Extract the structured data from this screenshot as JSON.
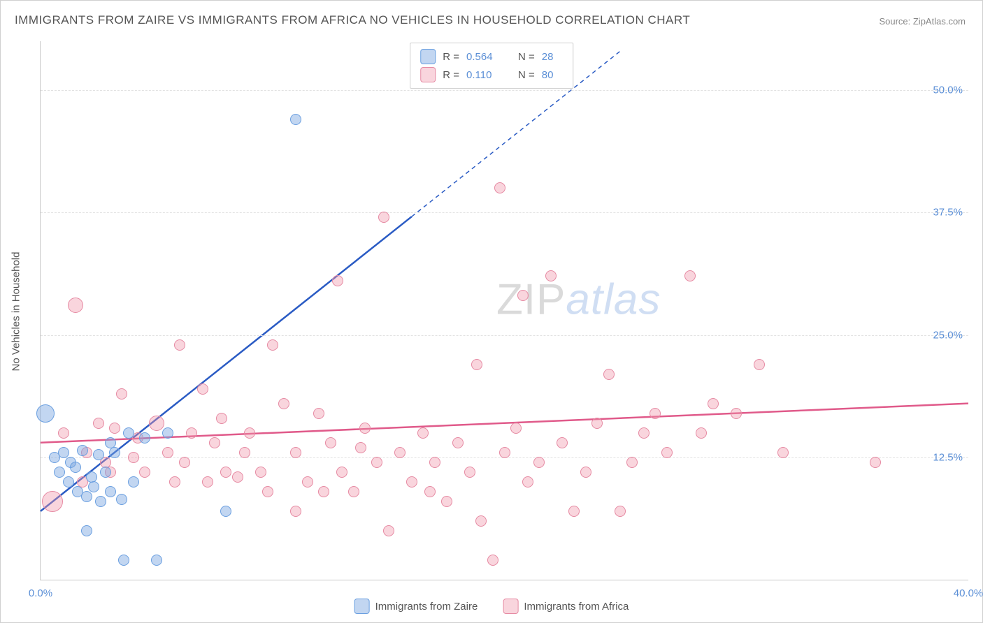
{
  "title": "IMMIGRANTS FROM ZAIRE VS IMMIGRANTS FROM AFRICA NO VEHICLES IN HOUSEHOLD CORRELATION CHART",
  "source": "Source: ZipAtlas.com",
  "ylabel": "No Vehicles in Household",
  "watermark": {
    "part1": "ZIP",
    "part2": "atlas"
  },
  "chart": {
    "type": "scatter",
    "background_color": "#ffffff",
    "grid_color": "#e2e2e2",
    "axis_color": "#c8c8c8",
    "tick_label_color": "#5b8fd6",
    "xlim": [
      0,
      40
    ],
    "ylim": [
      0,
      55
    ],
    "xticks": [
      {
        "v": 0,
        "label": "0.0%"
      },
      {
        "v": 40,
        "label": "40.0%"
      }
    ],
    "yticks": [
      {
        "v": 12.5,
        "label": "12.5%"
      },
      {
        "v": 25,
        "label": "25.0%"
      },
      {
        "v": 37.5,
        "label": "37.5%"
      },
      {
        "v": 50,
        "label": "50.0%"
      }
    ],
    "series": [
      {
        "name": "Immigrants from Zaire",
        "fill": "rgba(120,165,225,0.45)",
        "stroke": "#6a9fe0",
        "r_value": "0.564",
        "n_value": "28",
        "regression": {
          "color": "#2a5bc4",
          "width": 2.5,
          "solid_to_x": 16,
          "x1": 0,
          "y1": 7,
          "x2": 25,
          "y2": 54
        },
        "points": [
          {
            "x": 0.2,
            "y": 17,
            "r": 13
          },
          {
            "x": 0.6,
            "y": 12.5,
            "r": 8
          },
          {
            "x": 0.8,
            "y": 11,
            "r": 8
          },
          {
            "x": 1.0,
            "y": 13,
            "r": 8
          },
          {
            "x": 1.2,
            "y": 10,
            "r": 8
          },
          {
            "x": 1.3,
            "y": 12,
            "r": 8
          },
          {
            "x": 1.5,
            "y": 11.5,
            "r": 8
          },
          {
            "x": 1.6,
            "y": 9,
            "r": 8
          },
          {
            "x": 1.8,
            "y": 13.2,
            "r": 8
          },
          {
            "x": 2.0,
            "y": 8.5,
            "r": 8
          },
          {
            "x": 2.2,
            "y": 10.5,
            "r": 8
          },
          {
            "x": 2.3,
            "y": 9.5,
            "r": 8
          },
          {
            "x": 2.5,
            "y": 12.8,
            "r": 8
          },
          {
            "x": 2.6,
            "y": 8,
            "r": 8
          },
          {
            "x": 2.8,
            "y": 11,
            "r": 8
          },
          {
            "x": 3.0,
            "y": 9,
            "r": 8
          },
          {
            "x": 3.2,
            "y": 13,
            "r": 8
          },
          {
            "x": 3.5,
            "y": 8.2,
            "r": 8
          },
          {
            "x": 3.8,
            "y": 15,
            "r": 8
          },
          {
            "x": 4.0,
            "y": 10,
            "r": 8
          },
          {
            "x": 2.0,
            "y": 5,
            "r": 8
          },
          {
            "x": 3.6,
            "y": 2,
            "r": 8
          },
          {
            "x": 5.0,
            "y": 2,
            "r": 8
          },
          {
            "x": 4.5,
            "y": 14.5,
            "r": 8
          },
          {
            "x": 5.5,
            "y": 15,
            "r": 8
          },
          {
            "x": 8.0,
            "y": 7,
            "r": 8
          },
          {
            "x": 11.0,
            "y": 47,
            "r": 8
          },
          {
            "x": 3.0,
            "y": 14,
            "r": 8
          }
        ]
      },
      {
        "name": "Immigrants from Africa",
        "fill": "rgba(240,150,170,0.40)",
        "stroke": "#e68aa3",
        "r_value": "0.110",
        "n_value": "80",
        "regression": {
          "color": "#e05a8a",
          "width": 2.5,
          "solid_to_x": 40,
          "x1": 0,
          "y1": 14,
          "x2": 40,
          "y2": 18
        },
        "points": [
          {
            "x": 0.5,
            "y": 8,
            "r": 15
          },
          {
            "x": 1.5,
            "y": 28,
            "r": 11
          },
          {
            "x": 1.0,
            "y": 15,
            "r": 8
          },
          {
            "x": 2.0,
            "y": 13,
            "r": 8
          },
          {
            "x": 2.5,
            "y": 16,
            "r": 8
          },
          {
            "x": 3.0,
            "y": 11,
            "r": 8
          },
          {
            "x": 3.2,
            "y": 15.5,
            "r": 8
          },
          {
            "x": 3.5,
            "y": 19,
            "r": 8
          },
          {
            "x": 4.0,
            "y": 12.5,
            "r": 8
          },
          {
            "x": 4.5,
            "y": 11,
            "r": 8
          },
          {
            "x": 5.0,
            "y": 16,
            "r": 11
          },
          {
            "x": 5.5,
            "y": 13,
            "r": 8
          },
          {
            "x": 6.0,
            "y": 24,
            "r": 8
          },
          {
            "x": 6.5,
            "y": 15,
            "r": 8
          },
          {
            "x": 7.0,
            "y": 19.5,
            "r": 8
          },
          {
            "x": 7.5,
            "y": 14,
            "r": 8
          },
          {
            "x": 7.8,
            "y": 16.5,
            "r": 8
          },
          {
            "x": 8.0,
            "y": 11,
            "r": 8
          },
          {
            "x": 8.5,
            "y": 10.5,
            "r": 8
          },
          {
            "x": 9.0,
            "y": 15,
            "r": 8
          },
          {
            "x": 9.5,
            "y": 11,
            "r": 8
          },
          {
            "x": 10.0,
            "y": 24,
            "r": 8
          },
          {
            "x": 10.5,
            "y": 18,
            "r": 8
          },
          {
            "x": 11.0,
            "y": 13,
            "r": 8
          },
          {
            "x": 11.5,
            "y": 10,
            "r": 8
          },
          {
            "x": 12.0,
            "y": 17,
            "r": 8
          },
          {
            "x": 12.5,
            "y": 14,
            "r": 8
          },
          {
            "x": 12.8,
            "y": 30.5,
            "r": 8
          },
          {
            "x": 13.0,
            "y": 11,
            "r": 8
          },
          {
            "x": 13.5,
            "y": 9,
            "r": 8
          },
          {
            "x": 14.0,
            "y": 15.5,
            "r": 8
          },
          {
            "x": 14.5,
            "y": 12,
            "r": 8
          },
          {
            "x": 14.8,
            "y": 37,
            "r": 8
          },
          {
            "x": 15.0,
            "y": 5,
            "r": 8
          },
          {
            "x": 15.5,
            "y": 13,
            "r": 8
          },
          {
            "x": 16.0,
            "y": 10,
            "r": 8
          },
          {
            "x": 16.5,
            "y": 15,
            "r": 8
          },
          {
            "x": 17.0,
            "y": 12,
            "r": 8
          },
          {
            "x": 17.5,
            "y": 8,
            "r": 8
          },
          {
            "x": 18.0,
            "y": 14,
            "r": 8
          },
          {
            "x": 18.5,
            "y": 11,
            "r": 8
          },
          {
            "x": 18.8,
            "y": 22,
            "r": 8
          },
          {
            "x": 19.0,
            "y": 6,
            "r": 8
          },
          {
            "x": 19.5,
            "y": 2,
            "r": 8
          },
          {
            "x": 19.8,
            "y": 40,
            "r": 8
          },
          {
            "x": 20.0,
            "y": 13,
            "r": 8
          },
          {
            "x": 20.5,
            "y": 15.5,
            "r": 8
          },
          {
            "x": 20.8,
            "y": 29,
            "r": 8
          },
          {
            "x": 21.0,
            "y": 10,
            "r": 8
          },
          {
            "x": 22.0,
            "y": 31,
            "r": 8
          },
          {
            "x": 22.5,
            "y": 14,
            "r": 8
          },
          {
            "x": 23.0,
            "y": 7,
            "r": 8
          },
          {
            "x": 23.5,
            "y": 11,
            "r": 8
          },
          {
            "x": 24.0,
            "y": 16,
            "r": 8
          },
          {
            "x": 24.5,
            "y": 21,
            "r": 8
          },
          {
            "x": 25.0,
            "y": 7,
            "r": 8
          },
          {
            "x": 25.5,
            "y": 12,
            "r": 8
          },
          {
            "x": 26.0,
            "y": 15,
            "r": 8
          },
          {
            "x": 26.5,
            "y": 17,
            "r": 8
          },
          {
            "x": 27.0,
            "y": 13,
            "r": 8
          },
          {
            "x": 28.0,
            "y": 31,
            "r": 8
          },
          {
            "x": 28.5,
            "y": 15,
            "r": 8
          },
          {
            "x": 29.0,
            "y": 18,
            "r": 8
          },
          {
            "x": 30.0,
            "y": 17,
            "r": 8
          },
          {
            "x": 31.0,
            "y": 22,
            "r": 8
          },
          {
            "x": 32.0,
            "y": 13,
            "r": 8
          },
          {
            "x": 36.0,
            "y": 12,
            "r": 8
          },
          {
            "x": 11.0,
            "y": 7,
            "r": 8
          },
          {
            "x": 6.2,
            "y": 12,
            "r": 8
          },
          {
            "x": 7.2,
            "y": 10,
            "r": 8
          },
          {
            "x": 8.8,
            "y": 13,
            "r": 8
          },
          {
            "x": 9.8,
            "y": 9,
            "r": 8
          },
          {
            "x": 12.2,
            "y": 9,
            "r": 8
          },
          {
            "x": 13.8,
            "y": 13.5,
            "r": 8
          },
          {
            "x": 16.8,
            "y": 9,
            "r": 8
          },
          {
            "x": 21.5,
            "y": 12,
            "r": 8
          },
          {
            "x": 4.2,
            "y": 14.5,
            "r": 8
          },
          {
            "x": 5.8,
            "y": 10,
            "r": 8
          },
          {
            "x": 2.8,
            "y": 12,
            "r": 8
          },
          {
            "x": 1.8,
            "y": 10,
            "r": 8
          }
        ]
      }
    ],
    "legend_top_labels": {
      "r": "R =",
      "n": "N ="
    }
  }
}
